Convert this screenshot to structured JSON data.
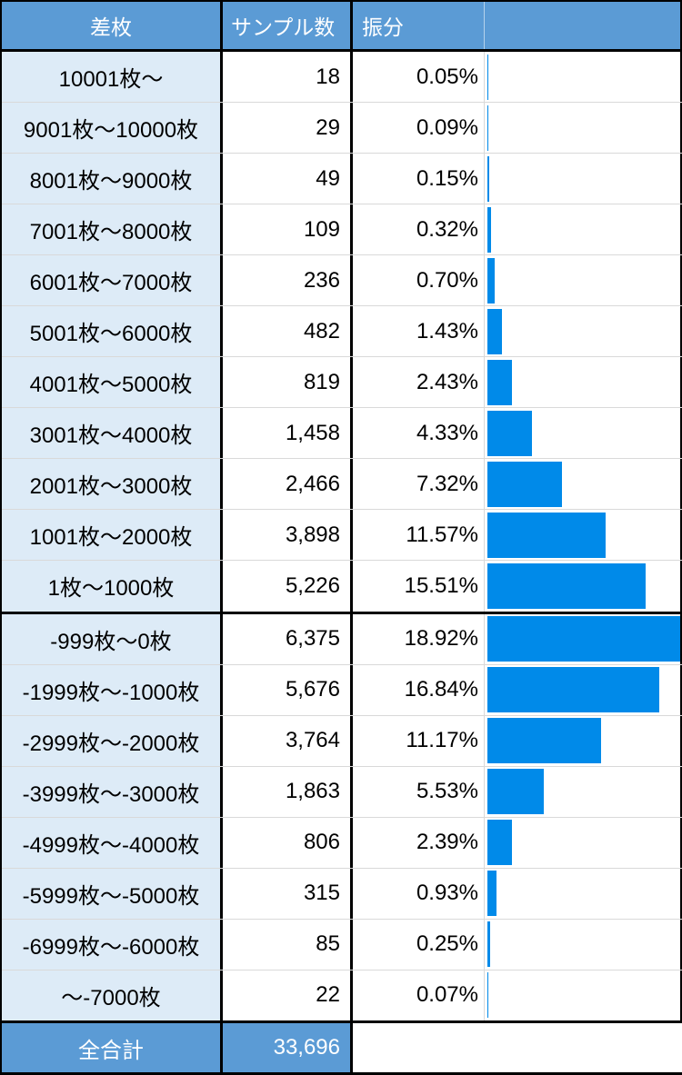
{
  "header": {
    "range": "差枚",
    "samples": "サンプル数",
    "share": "振分"
  },
  "rows": [
    {
      "range": "10001枚〜",
      "count": "18",
      "share": "0.05%"
    },
    {
      "range": "9001枚〜10000枚",
      "count": "29",
      "share": "0.09%"
    },
    {
      "range": "8001枚〜9000枚",
      "count": "49",
      "share": "0.15%"
    },
    {
      "range": "7001枚〜8000枚",
      "count": "109",
      "share": "0.32%"
    },
    {
      "range": "6001枚〜7000枚",
      "count": "236",
      "share": "0.70%"
    },
    {
      "range": "5001枚〜6000枚",
      "count": "482",
      "share": "1.43%"
    },
    {
      "range": "4001枚〜5000枚",
      "count": "819",
      "share": "2.43%"
    },
    {
      "range": "3001枚〜4000枚",
      "count": "1,458",
      "share": "4.33%"
    },
    {
      "range": "2001枚〜3000枚",
      "count": "2,466",
      "share": "7.32%"
    },
    {
      "range": "1001枚〜2000枚",
      "count": "3,898",
      "share": "11.57%"
    },
    {
      "range": "1枚〜1000枚",
      "count": "5,226",
      "share": "15.51%"
    },
    {
      "range": "-999枚〜0枚",
      "count": "6,375",
      "share": "18.92%"
    },
    {
      "range": "-1999枚〜-1000枚",
      "count": "5,676",
      "share": "16.84%"
    },
    {
      "range": "-2999枚〜-2000枚",
      "count": "3,764",
      "share": "11.17%"
    },
    {
      "range": "-3999枚〜-3000枚",
      "count": "1,863",
      "share": "5.53%"
    },
    {
      "range": "-4999枚〜-4000枚",
      "count": "806",
      "share": "2.39%"
    },
    {
      "range": "-5999枚〜-5000枚",
      "count": "315",
      "share": "0.93%"
    },
    {
      "range": "-6999枚〜-6000枚",
      "count": "85",
      "share": "0.25%"
    },
    {
      "range": "〜-7000枚",
      "count": "22",
      "share": "0.07%"
    }
  ],
  "footer": {
    "label": "全合計",
    "total": "33,696"
  },
  "layout": {
    "group_end_rows": [
      10,
      18
    ]
  },
  "colors": {
    "header_bg": "#5b9bd5",
    "row_label_bg": "#ddebf7",
    "bar": "#008ae9",
    "border_dark": "#000000",
    "border_light": "#d9d9d9",
    "header_text": "#ffffff",
    "body_text": "#000000"
  },
  "chart_data": {
    "type": "bar",
    "orientation": "horizontal",
    "title": "",
    "xlabel": "振分",
    "ylabel": "差枚",
    "categories": [
      "10001枚〜",
      "9001枚〜10000枚",
      "8001枚〜9000枚",
      "7001枚〜8000枚",
      "6001枚〜7000枚",
      "5001枚〜6000枚",
      "4001枚〜5000枚",
      "3001枚〜4000枚",
      "2001枚〜3000枚",
      "1001枚〜2000枚",
      "1枚〜1000枚",
      "-999枚〜0枚",
      "-1999枚〜-1000枚",
      "-2999枚〜-2000枚",
      "-3999枚〜-3000枚",
      "-4999枚〜-4000枚",
      "-5999枚〜-5000枚",
      "-6999枚〜-6000枚",
      "〜-7000枚"
    ],
    "series": [
      {
        "name": "サンプル数",
        "values": [
          18,
          29,
          49,
          109,
          236,
          482,
          819,
          1458,
          2466,
          3898,
          5226,
          6375,
          5676,
          3764,
          1863,
          806,
          315,
          85,
          22
        ]
      },
      {
        "name": "振分(%)",
        "values": [
          0.05,
          0.09,
          0.15,
          0.32,
          0.7,
          1.43,
          2.43,
          4.33,
          7.32,
          11.57,
          15.51,
          18.92,
          16.84,
          11.17,
          5.53,
          2.39,
          0.93,
          0.25,
          0.07
        ]
      }
    ],
    "total_samples": 33696,
    "bar_axis_max_pct": 18.92,
    "legend_position": "none",
    "grid": false
  }
}
